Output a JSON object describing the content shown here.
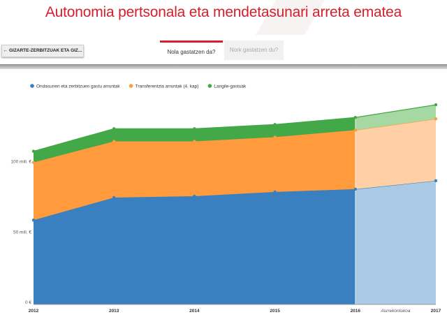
{
  "header": {
    "title": "Autonomia pertsonala eta mendetasunari arreta ematea"
  },
  "nav": {
    "back_label": "← GIZARTE-ZERBITZUAK ETA GIZ..."
  },
  "tabs": [
    {
      "label": "Nola gastatzen da?",
      "active": true
    },
    {
      "label": "Nork gastatzen du?",
      "active": false
    }
  ],
  "colors": {
    "accent": "#d4202c",
    "series": [
      "#3a7fbf",
      "#ff9b3d",
      "#43a847"
    ],
    "series_light": [
      "#a9c9e5",
      "#ffcfa6",
      "#a6d8a4"
    ]
  },
  "chart_data": {
    "type": "area",
    "stacked": true,
    "x": [
      "2012",
      "2013",
      "2014",
      "2015",
      "2016",
      "2017"
    ],
    "forecast_label": "Aurrekontukoa",
    "forecast_from": "2016",
    "series": [
      {
        "name": "Ondasunen eta zerbitzuen gastu arruntak",
        "values": [
          60,
          76,
          77,
          80,
          82,
          88
        ]
      },
      {
        "name": "Transferentzia arruntak (4. kap)",
        "values": [
          41,
          40,
          39,
          39,
          42,
          44
        ]
      },
      {
        "name": "Langile-gastuak",
        "values": [
          8,
          9,
          9,
          9,
          9,
          10
        ]
      }
    ],
    "yticks": [
      {
        "value": 0,
        "label": "0 €"
      },
      {
        "value": 50,
        "label": "50 mill. €"
      },
      {
        "value": 100,
        "label": "100 mill. €"
      }
    ],
    "ylim": [
      0,
      150
    ],
    "legend_position": "top-left",
    "grid": true
  }
}
